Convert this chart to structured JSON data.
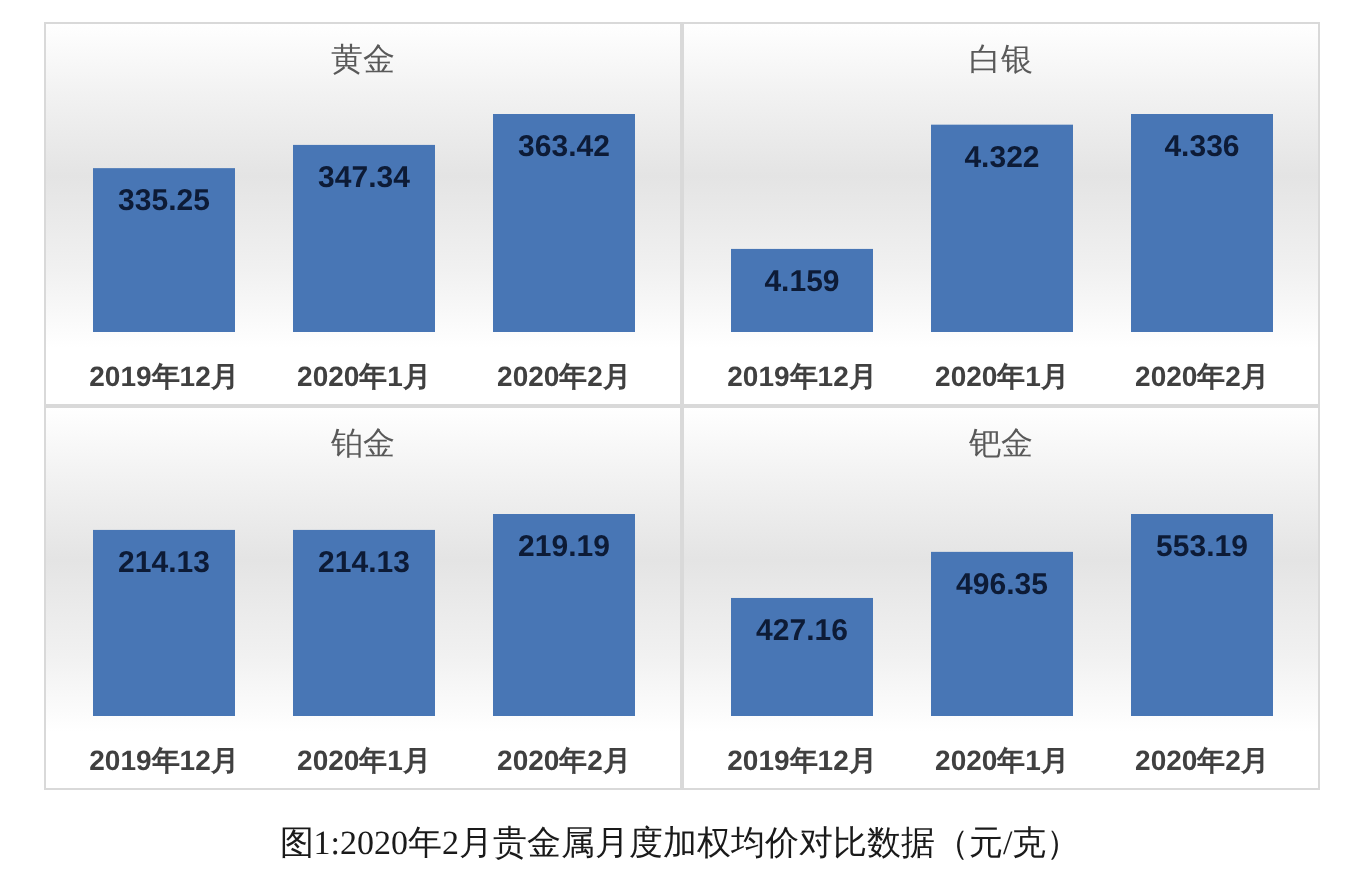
{
  "chart_data": [
    {
      "type": "bar",
      "title": "黄金",
      "categories": [
        "2019年12月",
        "2020年1月",
        "2020年2月"
      ],
      "values": [
        335.25,
        347.34,
        363.42
      ],
      "color": "#4876b5",
      "ylim": [
        250,
        363.42
      ],
      "data_labels": true,
      "tick_labels": "x"
    },
    {
      "type": "bar",
      "title": "白银",
      "categories": [
        "2019年12月",
        "2020年1月",
        "2020年2月"
      ],
      "values": [
        4.159,
        4.322,
        4.336
      ],
      "color": "#4876b5",
      "ylim": [
        4.05,
        4.336
      ],
      "data_labels": true,
      "tick_labels": "x"
    },
    {
      "type": "bar",
      "title": "铂金",
      "categories": [
        "2019年12月",
        "2020年1月",
        "2020年2月"
      ],
      "values": [
        214.13,
        214.13,
        219.19
      ],
      "color": "#4876b5",
      "ylim": [
        155,
        219.19
      ],
      "data_labels": true,
      "tick_labels": "x"
    },
    {
      "type": "bar",
      "title": "钯金",
      "categories": [
        "2019年12月",
        "2020年1月",
        "2020年2月"
      ],
      "values": [
        427.16,
        496.35,
        553.19
      ],
      "color": "#4876b5",
      "ylim": [
        250,
        553.19
      ],
      "data_labels": true,
      "tick_labels": "x",
      "annotations": [
        "图1:2020年2月贵金属月度加权均价对比数据（元/克）"
      ]
    }
  ]
}
